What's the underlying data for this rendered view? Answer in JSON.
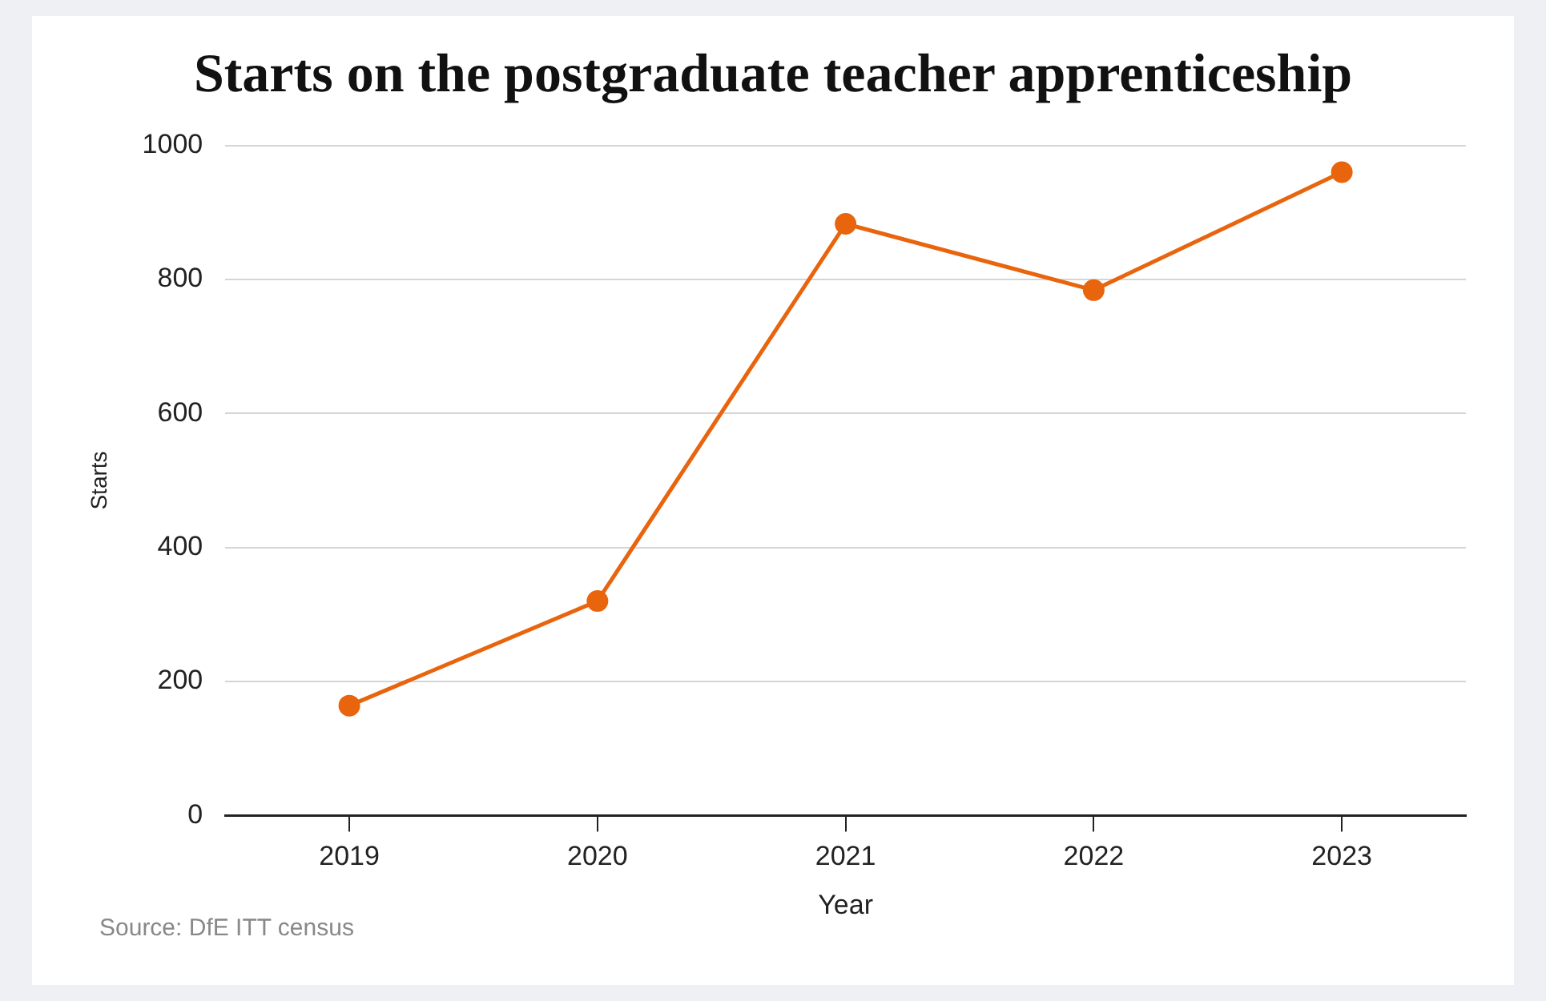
{
  "chart_data": {
    "type": "line",
    "title": "Starts on the postgraduate teacher apprenticeship",
    "xlabel": "Year",
    "ylabel": "Starts",
    "categories": [
      "2019",
      "2020",
      "2021",
      "2022",
      "2023"
    ],
    "series": [
      {
        "color": "#e8650e",
        "values": [
          164,
          320,
          883,
          784,
          960
        ]
      }
    ],
    "ylim": [
      0,
      1000
    ],
    "yticks": [
      0,
      200,
      400,
      600,
      800,
      1000
    ],
    "grid": "y",
    "legend": false,
    "marker": "circle",
    "line_style": "solid",
    "annotations": [
      "Source: DfE ITT census"
    ]
  }
}
